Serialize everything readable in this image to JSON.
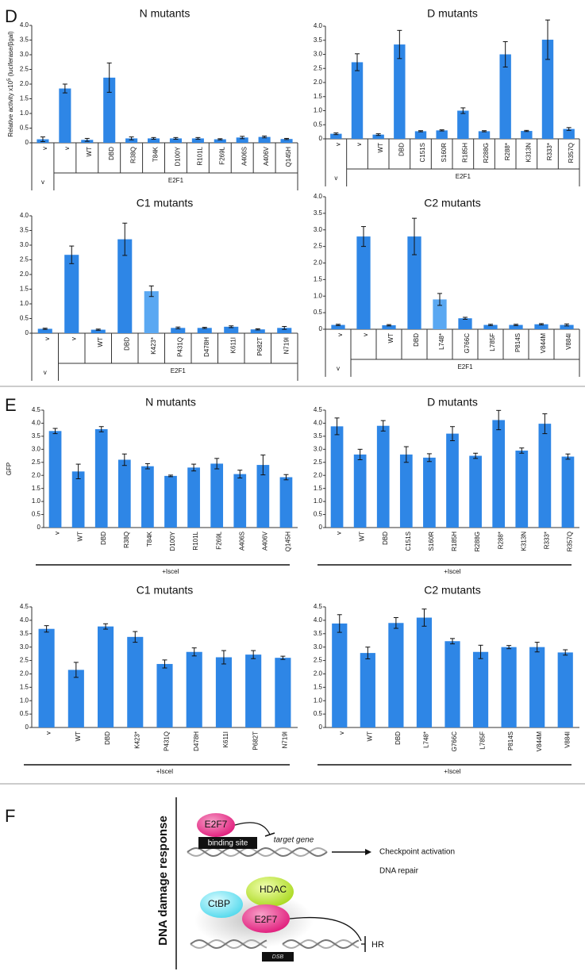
{
  "panel_labels": [
    "D",
    "E"
  ],
  "chart_data": [
    {
      "type": "bar",
      "title": "N mutants",
      "y_label": [
        "Relative activity x10",
        "5",
        " (luciferase/βgal)"
      ],
      "categories": [
        "v",
        "v",
        "WT",
        "DBD",
        "R38Q",
        "T84K",
        "D100Y",
        "R101L",
        "F269L",
        "A406S",
        "A406V",
        "Q145H"
      ],
      "values": [
        0.12,
        1.85,
        0.1,
        2.22,
        0.15,
        0.15,
        0.15,
        0.15,
        0.12,
        0.18,
        0.2,
        0.13
      ],
      "errors": [
        0.08,
        0.15,
        0.05,
        0.5,
        0.05,
        0.03,
        0.03,
        0.03,
        0.02,
        0.04,
        0.03,
        0.02
      ],
      "group_labels": [
        "v",
        "E2F1"
      ],
      "color": "#2e86e6",
      "ylim": [
        0,
        4
      ],
      "yticks": [
        0,
        0.5,
        {
          "value": 1,
          "label": "1.0"
        },
        1.5,
        {
          "value": 2,
          "label": "2.0"
        },
        2.5,
        {
          "value": 3,
          "label": "3.0"
        },
        3.5,
        {
          "value": 4,
          "label": "4.0"
        }
      ]
    },
    {
      "type": "bar",
      "title": "D mutants",
      "categories": [
        "v",
        "v",
        "WT",
        "DBD",
        "C151S",
        "S160R",
        "R185H",
        "R288G",
        "R288*",
        "K313N",
        "R333*",
        "R357Q"
      ],
      "values": [
        0.18,
        2.72,
        0.15,
        3.35,
        0.27,
        0.3,
        1.0,
        0.27,
        3.0,
        0.28,
        3.52,
        0.35
      ],
      "errors": [
        0.03,
        0.3,
        0.03,
        0.5,
        0.02,
        0.02,
        0.1,
        0.02,
        0.45,
        0.02,
        0.7,
        0.05
      ],
      "group_labels": [
        "v",
        "E2F1"
      ],
      "color": "#2e86e6",
      "ylim": [
        0,
        4
      ],
      "yticks": [
        0,
        0.5,
        {
          "value": 1,
          "label": "1.0"
        },
        1.5,
        {
          "value": 2,
          "label": "2.0"
        },
        2.5,
        {
          "value": 3,
          "label": "3.0"
        },
        3.5,
        {
          "value": 4,
          "label": "4.0"
        }
      ]
    },
    {
      "type": "bar",
      "title": "C1 mutants",
      "categories": [
        "v",
        "v",
        "WT",
        "DBD",
        "K423*",
        "P431Q",
        "D478H",
        "K611I",
        "P682T",
        "N719I"
      ],
      "values": [
        0.15,
        2.67,
        0.12,
        3.2,
        1.43,
        0.18,
        0.18,
        0.22,
        0.13,
        0.18
      ],
      "errors": [
        0.02,
        0.3,
        0.02,
        0.55,
        0.18,
        0.03,
        0.02,
        0.03,
        0.02,
        0.05
      ],
      "group_labels": [
        "v",
        "E2F1"
      ],
      "colors": [
        "#2e86e6",
        "#2e86e6",
        "#2e86e6",
        "#2e86e6",
        "#5aa8f2",
        "#2e86e6",
        "#2e86e6",
        "#2e86e6",
        "#2e86e6",
        "#2e86e6"
      ],
      "ylim": [
        0,
        4
      ],
      "yticks": [
        0,
        0.5,
        {
          "value": 1,
          "label": "1.0"
        },
        1.5,
        {
          "value": 2,
          "label": "2.0"
        },
        2.5,
        {
          "value": 3,
          "label": "3.0"
        },
        3.5,
        {
          "value": 4,
          "label": "4.0"
        }
      ]
    },
    {
      "type": "bar",
      "title": "C2 mutants",
      "categories": [
        "v",
        "v",
        "WT",
        "DBD",
        "L748*",
        "G766C",
        "L785F",
        "P814S",
        "V844M",
        "V884I"
      ],
      "values": [
        0.13,
        2.8,
        0.12,
        2.8,
        0.9,
        0.33,
        0.13,
        0.13,
        0.15,
        0.13
      ],
      "errors": [
        0.02,
        0.3,
        0.02,
        0.55,
        0.18,
        0.03,
        0.02,
        0.02,
        0.02,
        0.03
      ],
      "group_labels": [
        "v",
        "E2F1"
      ],
      "colors": [
        "#2e86e6",
        "#2e86e6",
        "#2e86e6",
        "#2e86e6",
        "#5aa8f2",
        "#2e86e6",
        "#2e86e6",
        "#2e86e6",
        "#2e86e6",
        "#2e86e6"
      ],
      "ylim": [
        0,
        4
      ],
      "yticks": [
        0,
        0.5,
        {
          "value": 1,
          "label": "1.0"
        },
        1.5,
        {
          "value": 2,
          "label": "2.0"
        },
        2.5,
        {
          "value": 3,
          "label": "3.0"
        },
        3.5,
        {
          "value": 4,
          "label": "4.0"
        }
      ]
    },
    {
      "type": "bar",
      "title": "N mutants",
      "y_label": [
        "GFP"
      ],
      "categories": [
        "v",
        "WT",
        "DBD",
        "R38Q",
        "T84K",
        "D100Y",
        "R101L",
        "F269L",
        "A406S",
        "A406V",
        "Q145H"
      ],
      "values": [
        3.7,
        2.15,
        3.77,
        2.6,
        2.35,
        1.98,
        2.3,
        2.45,
        2.05,
        2.4,
        1.93
      ],
      "errors": [
        0.1,
        0.28,
        0.1,
        0.22,
        0.1,
        0.03,
        0.13,
        0.2,
        0.15,
        0.38,
        0.1
      ],
      "condition": "+IsceI",
      "color": "#2e86e6",
      "ylim": [
        0,
        4.5
      ],
      "yticks": [
        0,
        0.5,
        {
          "value": 1,
          "label": "1.0"
        },
        1.5,
        {
          "value": 2,
          "label": "2.0"
        },
        2.5,
        {
          "value": 3,
          "label": "3.0"
        },
        3.5,
        {
          "value": 4,
          "label": "4.0"
        },
        4.5
      ]
    },
    {
      "type": "bar",
      "title": "D mutants",
      "categories": [
        "v",
        "WT",
        "DBD",
        "C151S",
        "S160R",
        "R185H",
        "R288G",
        "R288*",
        "K313N",
        "R333*",
        "R357Q"
      ],
      "values": [
        3.88,
        2.8,
        3.9,
        2.8,
        2.68,
        3.6,
        2.75,
        4.12,
        2.95,
        3.98,
        2.72
      ],
      "errors": [
        0.32,
        0.2,
        0.2,
        0.3,
        0.15,
        0.27,
        0.1,
        0.37,
        0.1,
        0.38,
        0.1
      ],
      "condition": "+IsceI",
      "color": "#2e86e6",
      "ylim": [
        0,
        4.5
      ],
      "yticks": [
        0,
        0.5,
        {
          "value": 1,
          "label": "1.0"
        },
        1.5,
        {
          "value": 2,
          "label": "2.0"
        },
        2.5,
        {
          "value": 3,
          "label": "3.0"
        },
        3.5,
        {
          "value": 4,
          "label": "4.0"
        },
        4.5
      ]
    },
    {
      "type": "bar",
      "title": "C1 mutants",
      "categories": [
        "v",
        "WT",
        "DBD",
        "K423*",
        "P431Q",
        "D478H",
        "K611I",
        "P682T",
        "N719I"
      ],
      "values": [
        3.68,
        2.15,
        3.77,
        3.38,
        2.37,
        2.82,
        2.62,
        2.72,
        2.6
      ],
      "errors": [
        0.12,
        0.28,
        0.1,
        0.2,
        0.15,
        0.15,
        0.25,
        0.15,
        0.06
      ],
      "condition": "+IsceI",
      "color": "#2e86e6",
      "ylim": [
        0,
        4.5
      ],
      "yticks": [
        0,
        0.5,
        {
          "value": 1,
          "label": "1.0"
        },
        1.5,
        {
          "value": 2,
          "label": "2.0"
        },
        2.5,
        {
          "value": 3,
          "label": "3.0"
        },
        3.5,
        {
          "value": 4,
          "label": "4.0"
        },
        4.5
      ]
    },
    {
      "type": "bar",
      "title": "C2 mutants",
      "categories": [
        "v",
        "WT",
        "DBD",
        "L748*",
        "G766C",
        "L785F",
        "P814S",
        "V844M",
        "V884I"
      ],
      "values": [
        3.88,
        2.78,
        3.9,
        4.1,
        3.22,
        2.82,
        3.0,
        3.0,
        2.8
      ],
      "errors": [
        0.33,
        0.22,
        0.2,
        0.32,
        0.1,
        0.25,
        0.06,
        0.18,
        0.1
      ],
      "condition": "+IsceI",
      "color": "#2e86e6",
      "ylim": [
        0,
        4.5
      ],
      "yticks": [
        0,
        0.5,
        {
          "value": 1,
          "label": "1.0"
        },
        1.5,
        {
          "value": 2,
          "label": "2.0"
        },
        2.5,
        {
          "value": 3,
          "label": "3.0"
        },
        3.5,
        {
          "value": 4,
          "label": "4.0"
        },
        4.5
      ]
    }
  ],
  "diagram": {
    "panel_label": "F",
    "side_label": "DNA damage response",
    "top": {
      "protein": "E2F7",
      "site": "binding site",
      "target": "target gene",
      "outcomes": [
        "Checkpoint activation",
        "DNA repair"
      ]
    },
    "bottom": {
      "proteins": [
        "CtBP",
        "HDAC",
        "E2F7"
      ],
      "outcome": "HR",
      "break": "DSB"
    }
  }
}
